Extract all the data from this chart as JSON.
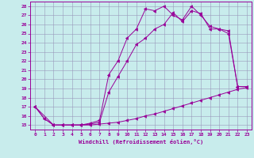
{
  "xlabel": "Windchill (Refroidissement éolien,°C)",
  "background_color": "#c8ecec",
  "grid_color": "#9999bb",
  "line_color": "#990099",
  "xlim": [
    -0.5,
    23.5
  ],
  "ylim": [
    14.5,
    28.5
  ],
  "yticks": [
    15,
    16,
    17,
    18,
    19,
    20,
    21,
    22,
    23,
    24,
    25,
    26,
    27,
    28
  ],
  "xticks": [
    0,
    1,
    2,
    3,
    4,
    5,
    6,
    7,
    8,
    9,
    10,
    11,
    12,
    13,
    14,
    15,
    16,
    17,
    18,
    19,
    20,
    21,
    22,
    23
  ],
  "line1_x": [
    0,
    1,
    2,
    3,
    4,
    5,
    6,
    7,
    8,
    9,
    10,
    11,
    12,
    13,
    14,
    15,
    16,
    17,
    18,
    19,
    20,
    21,
    22,
    23
  ],
  "line1_y": [
    17.0,
    15.7,
    15.0,
    15.0,
    15.0,
    15.0,
    15.0,
    15.1,
    15.2,
    15.3,
    15.5,
    15.7,
    16.0,
    16.2,
    16.5,
    16.8,
    17.1,
    17.4,
    17.7,
    18.0,
    18.3,
    18.6,
    18.9,
    19.1
  ],
  "line2_x": [
    0,
    1,
    2,
    3,
    4,
    5,
    6,
    7,
    8,
    9,
    10,
    11,
    12,
    13,
    14,
    15,
    16,
    17,
    18,
    19,
    20,
    21,
    22,
    23
  ],
  "line2_y": [
    17.0,
    15.7,
    15.0,
    15.0,
    15.0,
    15.0,
    15.1,
    15.3,
    18.6,
    20.3,
    22.0,
    23.8,
    24.5,
    25.5,
    26.0,
    27.3,
    26.3,
    27.5,
    27.2,
    25.5,
    25.5,
    25.3,
    19.2,
    19.2
  ],
  "line3_x": [
    0,
    2,
    3,
    4,
    5,
    6,
    7,
    8,
    9,
    10,
    11,
    12,
    13,
    14,
    15,
    16,
    17,
    18,
    19,
    20,
    21,
    22,
    23
  ],
  "line3_y": [
    17.0,
    15.0,
    15.0,
    15.0,
    15.0,
    15.2,
    15.5,
    20.5,
    22.0,
    24.5,
    25.5,
    27.7,
    27.5,
    28.0,
    27.0,
    26.5,
    28.0,
    27.0,
    25.8,
    25.5,
    25.0,
    19.2,
    19.2
  ]
}
